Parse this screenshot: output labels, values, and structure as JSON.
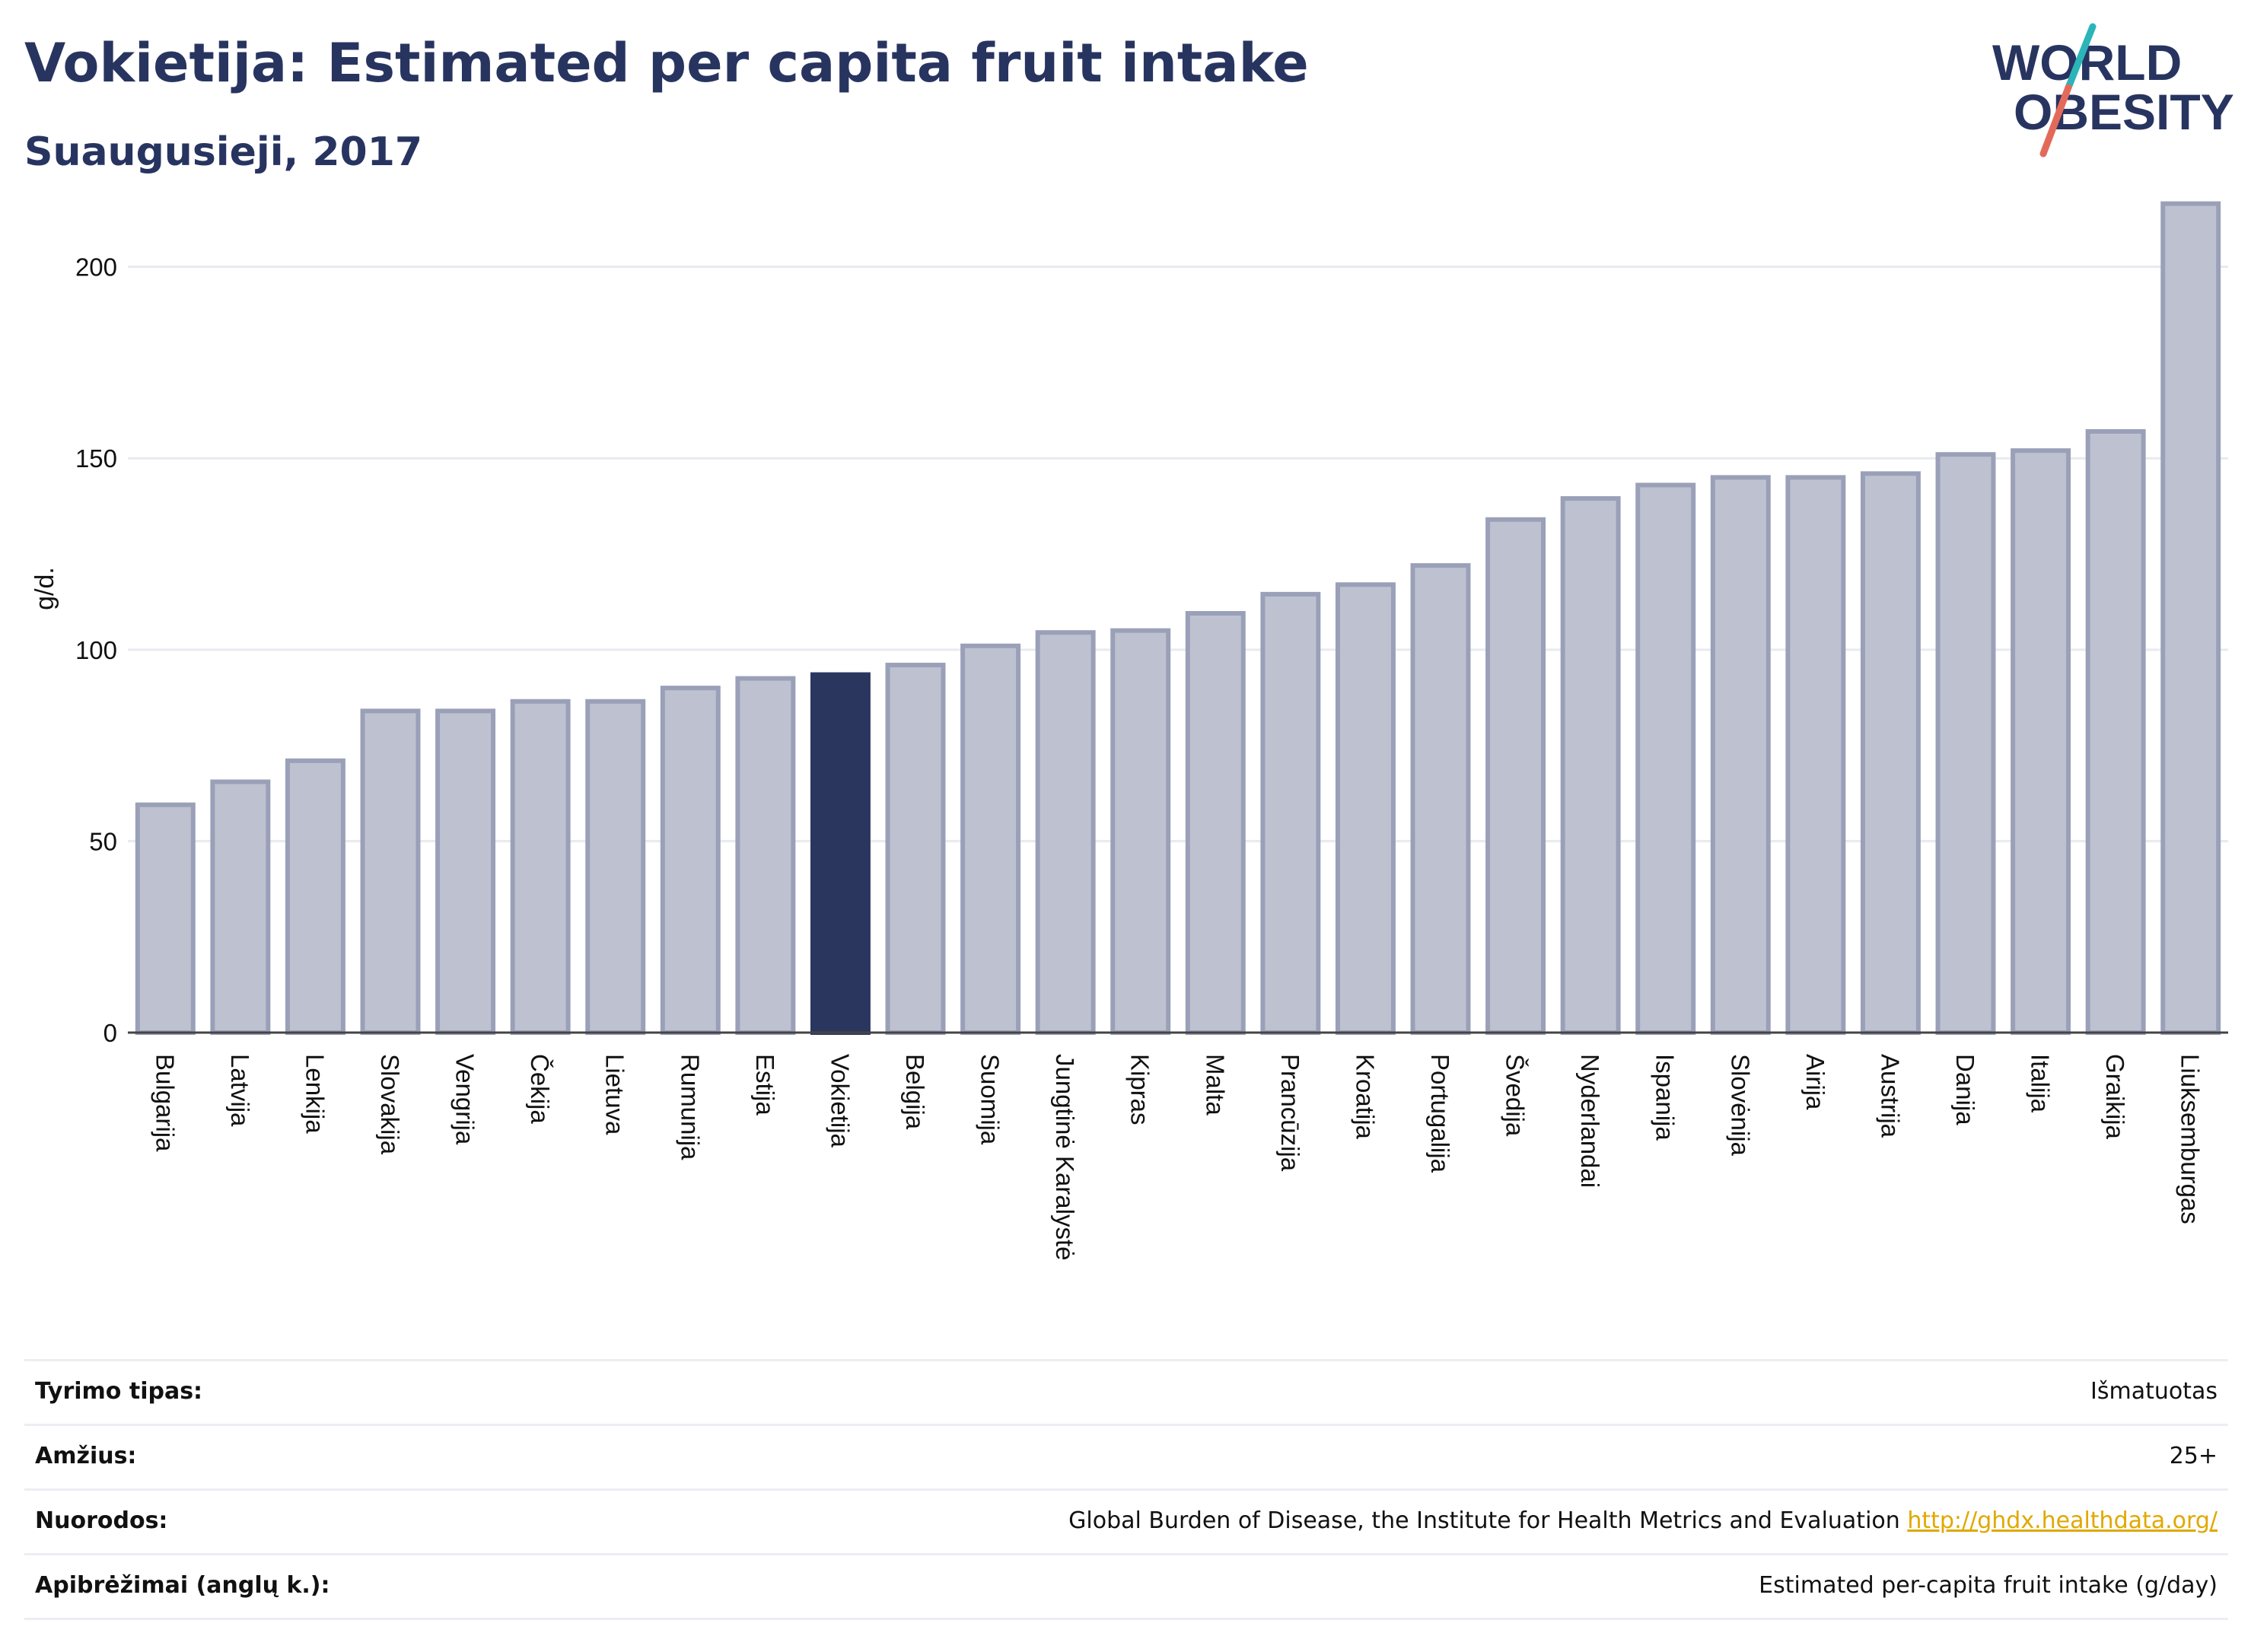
{
  "header": {
    "title": "Vokietija: Estimated per capita fruit intake",
    "subtitle": "Suaugusieji, 2017"
  },
  "logo": {
    "line1": "WORLD",
    "line2": "OBESITY"
  },
  "colors": {
    "highlight": "#2b365f",
    "bar_fill": "#bec2d0",
    "bar_stroke": "#9aa0b8",
    "text": "#283460",
    "accent_teal": "#2bb5b8",
    "accent_red": "#e36a5b",
    "link": "#e0a800"
  },
  "chart_data": {
    "type": "bar",
    "title": "Vokietija: Estimated per capita fruit intake",
    "subtitle": "Suaugusieji, 2017",
    "xlabel": "",
    "ylabel": "g/d.",
    "ylim": [
      0,
      200
    ],
    "yticks": [
      0,
      50,
      100,
      150,
      200
    ],
    "grid": true,
    "highlight": "Vokietija",
    "categories": [
      "Bulgarija",
      "Latvija",
      "Lenkija",
      "Slovakija",
      "Vengrija",
      "Čekija",
      "Lietuva",
      "Rumunija",
      "Estija",
      "Vokietija",
      "Belgija",
      "Suomija",
      "Jungtinė Karalystė",
      "Kipras",
      "Malta",
      "Prancūzija",
      "Kroatija",
      "Portugalija",
      "Švedija",
      "Nyderlandai",
      "Ispanija",
      "Slovėnija",
      "Airija",
      "Austrija",
      "Danija",
      "Italija",
      "Graikija",
      "Liuksemburgas"
    ],
    "values": [
      59.5,
      65.5,
      71,
      84,
      84,
      86.5,
      86.5,
      90,
      92.5,
      93.5,
      96,
      101,
      104.5,
      105,
      109.5,
      114.5,
      117,
      122,
      134,
      139.5,
      143,
      145,
      145,
      146,
      151,
      152,
      157,
      216.5
    ]
  },
  "meta": {
    "rows": [
      {
        "label": "Tyrimo tipas:",
        "value": "Išmatuotas"
      },
      {
        "label": "Amžius:",
        "value": "25+"
      },
      {
        "label": "Nuorodos:",
        "value": "Global Burden of Disease, the Institute for Health Metrics and Evaluation ",
        "link": "http://ghdx.healthdata.org/"
      },
      {
        "label": "Apibrėžimai (anglų k.):",
        "value": "Estimated per-capita fruit intake (g/day)"
      }
    ]
  }
}
